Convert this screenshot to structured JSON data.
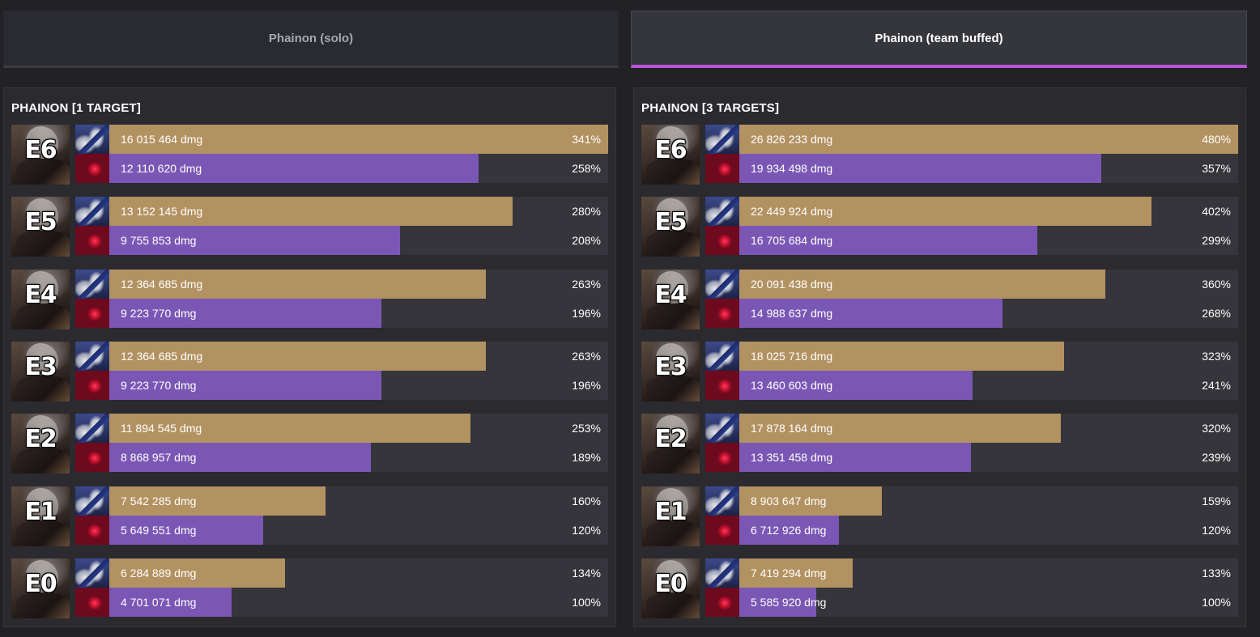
{
  "tabs": [
    {
      "label": "Phainon (solo)",
      "active": false
    },
    {
      "label": "Phainon (team buffed)",
      "active": true
    }
  ],
  "colors": {
    "background": "#212126",
    "panel": "#2a2a2f",
    "track": "#35353b",
    "series_a": "#b39262",
    "series_b": "#7b57b5",
    "active_tab_accent": "#bb55d8"
  },
  "icons": {
    "portrait": "phainon-portrait",
    "series_a_icon": "light-cone-a-icon",
    "series_b_icon": "light-cone-b-icon"
  },
  "chart_data": [
    {
      "type": "bar",
      "orientation": "horizontal",
      "title": "PHAINON [1 TARGET]",
      "categories": [
        "E6",
        "E5",
        "E4",
        "E3",
        "E2",
        "E1",
        "E0"
      ],
      "max_percent": 341,
      "series": [
        {
          "values": [
            16015464,
            13152145,
            12364685,
            12364685,
            11894545,
            7542285,
            6284889
          ],
          "labels": [
            "16 015 464 dmg",
            "13 152 145 dmg",
            "12 364 685 dmg",
            "12 364 685 dmg",
            "11 894 545 dmg",
            "7 542 285 dmg",
            "6 284 889 dmg"
          ],
          "percent_values": [
            341,
            280,
            263,
            263,
            253,
            160,
            134
          ],
          "percent_labels": [
            "341%",
            "280%",
            "263%",
            "263%",
            "253%",
            "160%",
            "134%"
          ]
        },
        {
          "values": [
            12110620,
            9755853,
            9223770,
            9223770,
            8868957,
            5649551,
            4701071
          ],
          "labels": [
            "12 110 620 dmg",
            "9 755 853 dmg",
            "9 223 770 dmg",
            "9 223 770 dmg",
            "8 868 957 dmg",
            "5 649 551 dmg",
            "4 701 071 dmg"
          ],
          "percent_values": [
            258,
            208,
            196,
            196,
            189,
            120,
            100
          ],
          "percent_labels": [
            "258%",
            "208%",
            "196%",
            "196%",
            "189%",
            "120%",
            "100%"
          ]
        }
      ]
    },
    {
      "type": "bar",
      "orientation": "horizontal",
      "title": "PHAINON [3 TARGETS]",
      "categories": [
        "E6",
        "E5",
        "E4",
        "E3",
        "E2",
        "E1",
        "E0"
      ],
      "max_percent": 480,
      "series": [
        {
          "values": [
            26826233,
            22449924,
            20091438,
            18025716,
            17878164,
            8903647,
            7419294
          ],
          "labels": [
            "26 826 233 dmg",
            "22 449 924 dmg",
            "20 091 438 dmg",
            "18 025 716 dmg",
            "17 878 164 dmg",
            "8 903 647 dmg",
            "7 419 294 dmg"
          ],
          "percent_values": [
            480,
            402,
            360,
            323,
            320,
            159,
            133
          ],
          "percent_labels": [
            "480%",
            "402%",
            "360%",
            "323%",
            "320%",
            "159%",
            "133%"
          ]
        },
        {
          "values": [
            19934498,
            16705684,
            14988637,
            13460603,
            13351458,
            6712926,
            5585920
          ],
          "labels": [
            "19 934 498 dmg",
            "16 705 684 dmg",
            "14 988 637 dmg",
            "13 460 603 dmg",
            "13 351 458 dmg",
            "6 712 926 dmg",
            "5 585 920 dmg"
          ],
          "percent_values": [
            357,
            299,
            268,
            241,
            239,
            120,
            100
          ],
          "percent_labels": [
            "357%",
            "299%",
            "268%",
            "241%",
            "239%",
            "120%",
            "100%"
          ]
        }
      ]
    }
  ]
}
